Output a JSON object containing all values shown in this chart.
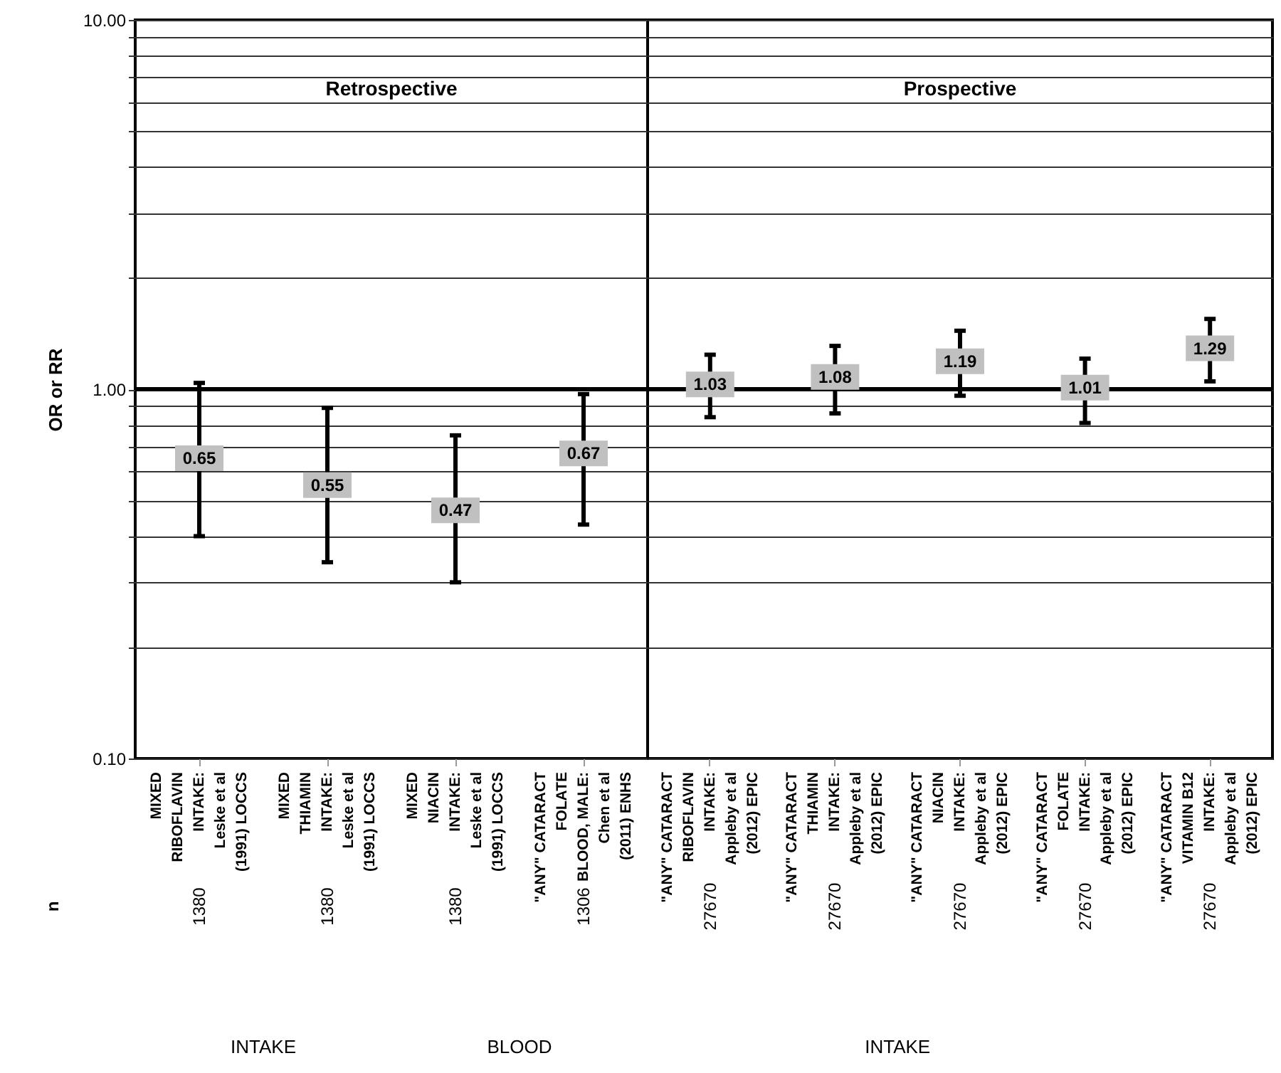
{
  "chart_data": [
    {
      "type": "scatter",
      "title": "Retrospective",
      "ylabel": "OR or RR",
      "categories": [
        "MIXED\nRIBOFLAVIN\nINTAKE:\nLeske et al\n(1991) LOCCS",
        "MIXED\nTHIAMIN\nINTAKE:\nLeske et al\n(1991) LOCCS",
        "MIXED\nNIACIN\nINTAKE:\nLeske et al\n(1991) LOCCS",
        "\"ANY\" CATARACT\nFOLATE\nBLOOD, MALE:\nChen et al\n(2011) ENHS"
      ],
      "values": [
        0.65,
        0.55,
        0.47,
        0.67
      ],
      "errors": [
        [
          0.4,
          1.04
        ],
        [
          0.34,
          0.89
        ],
        [
          0.3,
          0.75
        ],
        [
          0.43,
          0.97
        ]
      ],
      "data_labels": true,
      "log": "y",
      "grid": "y",
      "ylim": [
        0.1,
        10
      ],
      "yticks": [
        {
          "value": 0.1,
          "label": "0.10"
        },
        {
          "value": 0.2,
          "label": null
        },
        {
          "value": 0.3,
          "label": null
        },
        {
          "value": 0.4,
          "label": null
        },
        {
          "value": 0.5,
          "label": null
        },
        {
          "value": 0.6,
          "label": null
        },
        {
          "value": 0.7,
          "label": null
        },
        {
          "value": 0.8,
          "label": null
        },
        {
          "value": 0.9,
          "label": null
        },
        {
          "value": 1,
          "label": "1.00"
        },
        {
          "value": 2,
          "label": null
        },
        {
          "value": 3,
          "label": null
        },
        {
          "value": 4,
          "label": null
        },
        {
          "value": 5,
          "label": null
        },
        {
          "value": 6,
          "label": null
        },
        {
          "value": 7,
          "label": null
        },
        {
          "value": 8,
          "label": null
        },
        {
          "value": 9,
          "label": null
        },
        {
          "value": 10,
          "label": "10.00"
        }
      ],
      "ref_lines": [
        {
          "axis": "y",
          "value": 1,
          "color": "#000000"
        }
      ],
      "annotations": [
        "n",
        "1380",
        "1380",
        "1380",
        "1306",
        "INTAKE",
        "BLOOD"
      ]
    },
    {
      "type": "scatter",
      "title": "Prospective",
      "categories": [
        "\"ANY\" CATARACT\nRIBOFLAVIN\nINTAKE:\nAppleby et al\n(2012) EPIC",
        "\"ANY\" CATARACT\nTHIAMIN\nINTAKE:\nAppleby et al\n(2012) EPIC",
        "\"ANY\" CATARACT\nNIACIN\nINTAKE:\nAppleby et al\n(2012) EPIC",
        "\"ANY\" CATARACT\nFOLATE\nINTAKE:\nAppleby et al\n(2012) EPIC",
        "\"ANY\" CATARACT\nVITAMIN B12\nINTAKE:\nAppleby et al\n(2012) EPIC"
      ],
      "values": [
        1.03,
        1.08,
        1.19,
        1.01,
        1.29
      ],
      "errors": [
        [
          0.84,
          1.24
        ],
        [
          0.86,
          1.31
        ],
        [
          0.96,
          1.44
        ],
        [
          0.81,
          1.21
        ],
        [
          1.05,
          1.55
        ]
      ],
      "data_labels": true,
      "log": "y",
      "grid": "y",
      "tick_labels": "x",
      "ylim": [
        0.1,
        10
      ],
      "yticks": [
        {
          "value": 0.1,
          "label": null
        },
        {
          "value": 0.2,
          "label": null
        },
        {
          "value": 0.3,
          "label": null
        },
        {
          "value": 0.4,
          "label": null
        },
        {
          "value": 0.5,
          "label": null
        },
        {
          "value": 0.6,
          "label": null
        },
        {
          "value": 0.7,
          "label": null
        },
        {
          "value": 0.8,
          "label": null
        },
        {
          "value": 0.9,
          "label": null
        },
        {
          "value": 1,
          "label": null
        },
        {
          "value": 2,
          "label": null
        },
        {
          "value": 3,
          "label": null
        },
        {
          "value": 4,
          "label": null
        },
        {
          "value": 5,
          "label": null
        },
        {
          "value": 6,
          "label": null
        },
        {
          "value": 7,
          "label": null
        },
        {
          "value": 8,
          "label": null
        },
        {
          "value": 9,
          "label": null
        },
        {
          "value": 10,
          "label": null
        }
      ],
      "ref_lines": [
        {
          "axis": "y",
          "value": 1,
          "color": "#000000"
        }
      ],
      "annotations": [
        "27670",
        "27670",
        "27670",
        "27670",
        "27670",
        "INTAKE"
      ]
    }
  ]
}
